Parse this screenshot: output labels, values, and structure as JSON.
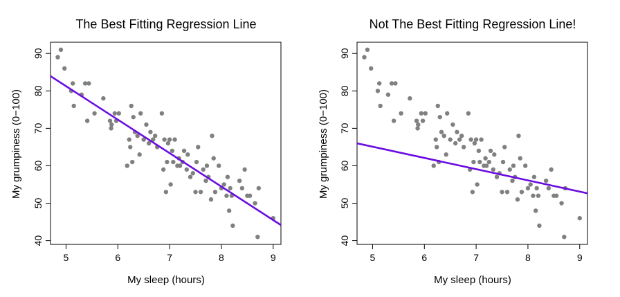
{
  "chart_data": [
    {
      "type": "scatter",
      "title": "The Best Fitting Regression Line",
      "xlabel": "My sleep (hours)",
      "ylabel": "My grumpiness (0−100)",
      "xlim": [
        4.7,
        9.15
      ],
      "ylim": [
        39,
        93
      ],
      "xticks": [
        5,
        6,
        7,
        8,
        9
      ],
      "yticks": [
        40,
        50,
        60,
        70,
        80,
        90
      ],
      "grid": false,
      "point_color": "#808080",
      "line_color": "#6A0DE0",
      "fit_line": {
        "intercept": 125.96,
        "slope": -8.94
      },
      "x": [
        4.84,
        4.9,
        4.97,
        5.1,
        5.13,
        5.15,
        5.3,
        5.37,
        5.41,
        5.44,
        5.55,
        5.72,
        5.85,
        5.87,
        5.88,
        5.94,
        5.97,
        6.02,
        6.18,
        6.22,
        6.24,
        6.26,
        6.28,
        6.3,
        6.33,
        6.38,
        6.42,
        6.44,
        6.5,
        6.55,
        6.6,
        6.63,
        6.68,
        6.72,
        6.76,
        6.85,
        6.88,
        6.9,
        6.93,
        6.95,
        6.97,
        7.0,
        7.02,
        7.05,
        7.07,
        7.1,
        7.15,
        7.18,
        7.2,
        7.25,
        7.28,
        7.33,
        7.35,
        7.4,
        7.45,
        7.5,
        7.52,
        7.55,
        7.6,
        7.65,
        7.7,
        7.72,
        7.75,
        7.8,
        7.82,
        7.85,
        7.88,
        7.95,
        8.0,
        8.05,
        8.1,
        8.12,
        8.15,
        8.17,
        8.2,
        8.22,
        8.35,
        8.4,
        8.45,
        8.5,
        8.55,
        8.65,
        8.7,
        8.72,
        9.0
      ],
      "y": [
        89,
        91,
        86,
        80,
        82,
        76,
        79,
        82,
        72,
        82,
        74,
        78,
        72,
        70,
        71,
        74,
        72,
        74,
        60,
        67,
        65,
        76,
        61,
        73,
        69,
        68,
        63,
        74,
        67,
        71,
        66,
        69,
        67,
        68,
        65,
        74,
        59,
        67,
        53,
        61,
        66,
        67,
        55,
        64,
        61,
        67,
        60,
        62,
        60,
        61,
        64,
        59,
        63,
        57,
        58,
        53,
        61,
        65,
        53,
        59,
        56,
        60,
        57,
        51,
        68,
        62,
        53,
        60,
        54,
        55,
        52,
        57,
        48,
        54,
        52,
        44,
        56,
        54,
        59,
        52,
        52,
        50,
        41,
        54,
        46
      ]
    },
    {
      "type": "scatter",
      "title": "Not The Best Fitting Regression Line!",
      "xlabel": "My sleep (hours)",
      "ylabel": "My grumpiness (0−100)",
      "xlim": [
        4.7,
        9.15
      ],
      "ylim": [
        39,
        93
      ],
      "xticks": [
        5,
        6,
        7,
        8,
        9
      ],
      "yticks": [
        40,
        50,
        60,
        70,
        80,
        90
      ],
      "grid": false,
      "point_color": "#808080",
      "line_color": "#6A0DE0",
      "fit_line": {
        "intercept": 80.1,
        "slope": -3.0
      },
      "x": [
        4.84,
        4.9,
        4.97,
        5.1,
        5.13,
        5.15,
        5.3,
        5.37,
        5.41,
        5.44,
        5.55,
        5.72,
        5.85,
        5.87,
        5.88,
        5.94,
        5.97,
        6.02,
        6.18,
        6.22,
        6.24,
        6.26,
        6.28,
        6.3,
        6.33,
        6.38,
        6.42,
        6.44,
        6.5,
        6.55,
        6.6,
        6.63,
        6.68,
        6.72,
        6.76,
        6.85,
        6.88,
        6.9,
        6.93,
        6.95,
        6.97,
        7.0,
        7.02,
        7.05,
        7.07,
        7.1,
        7.15,
        7.18,
        7.2,
        7.25,
        7.28,
        7.33,
        7.35,
        7.4,
        7.45,
        7.5,
        7.52,
        7.55,
        7.6,
        7.65,
        7.7,
        7.72,
        7.75,
        7.8,
        7.82,
        7.85,
        7.88,
        7.95,
        8.0,
        8.05,
        8.1,
        8.12,
        8.15,
        8.17,
        8.2,
        8.22,
        8.35,
        8.4,
        8.45,
        8.5,
        8.55,
        8.65,
        8.7,
        8.72,
        9.0
      ],
      "y": [
        89,
        91,
        86,
        80,
        82,
        76,
        79,
        82,
        72,
        82,
        74,
        78,
        72,
        70,
        71,
        74,
        72,
        74,
        60,
        67,
        65,
        76,
        61,
        73,
        69,
        68,
        63,
        74,
        67,
        71,
        66,
        69,
        67,
        68,
        65,
        74,
        59,
        67,
        53,
        61,
        66,
        67,
        55,
        64,
        61,
        67,
        60,
        62,
        60,
        61,
        64,
        59,
        63,
        57,
        58,
        53,
        61,
        65,
        53,
        59,
        56,
        60,
        57,
        51,
        68,
        62,
        53,
        60,
        54,
        55,
        52,
        57,
        48,
        54,
        52,
        44,
        56,
        54,
        59,
        52,
        52,
        50,
        41,
        54,
        46
      ]
    }
  ]
}
